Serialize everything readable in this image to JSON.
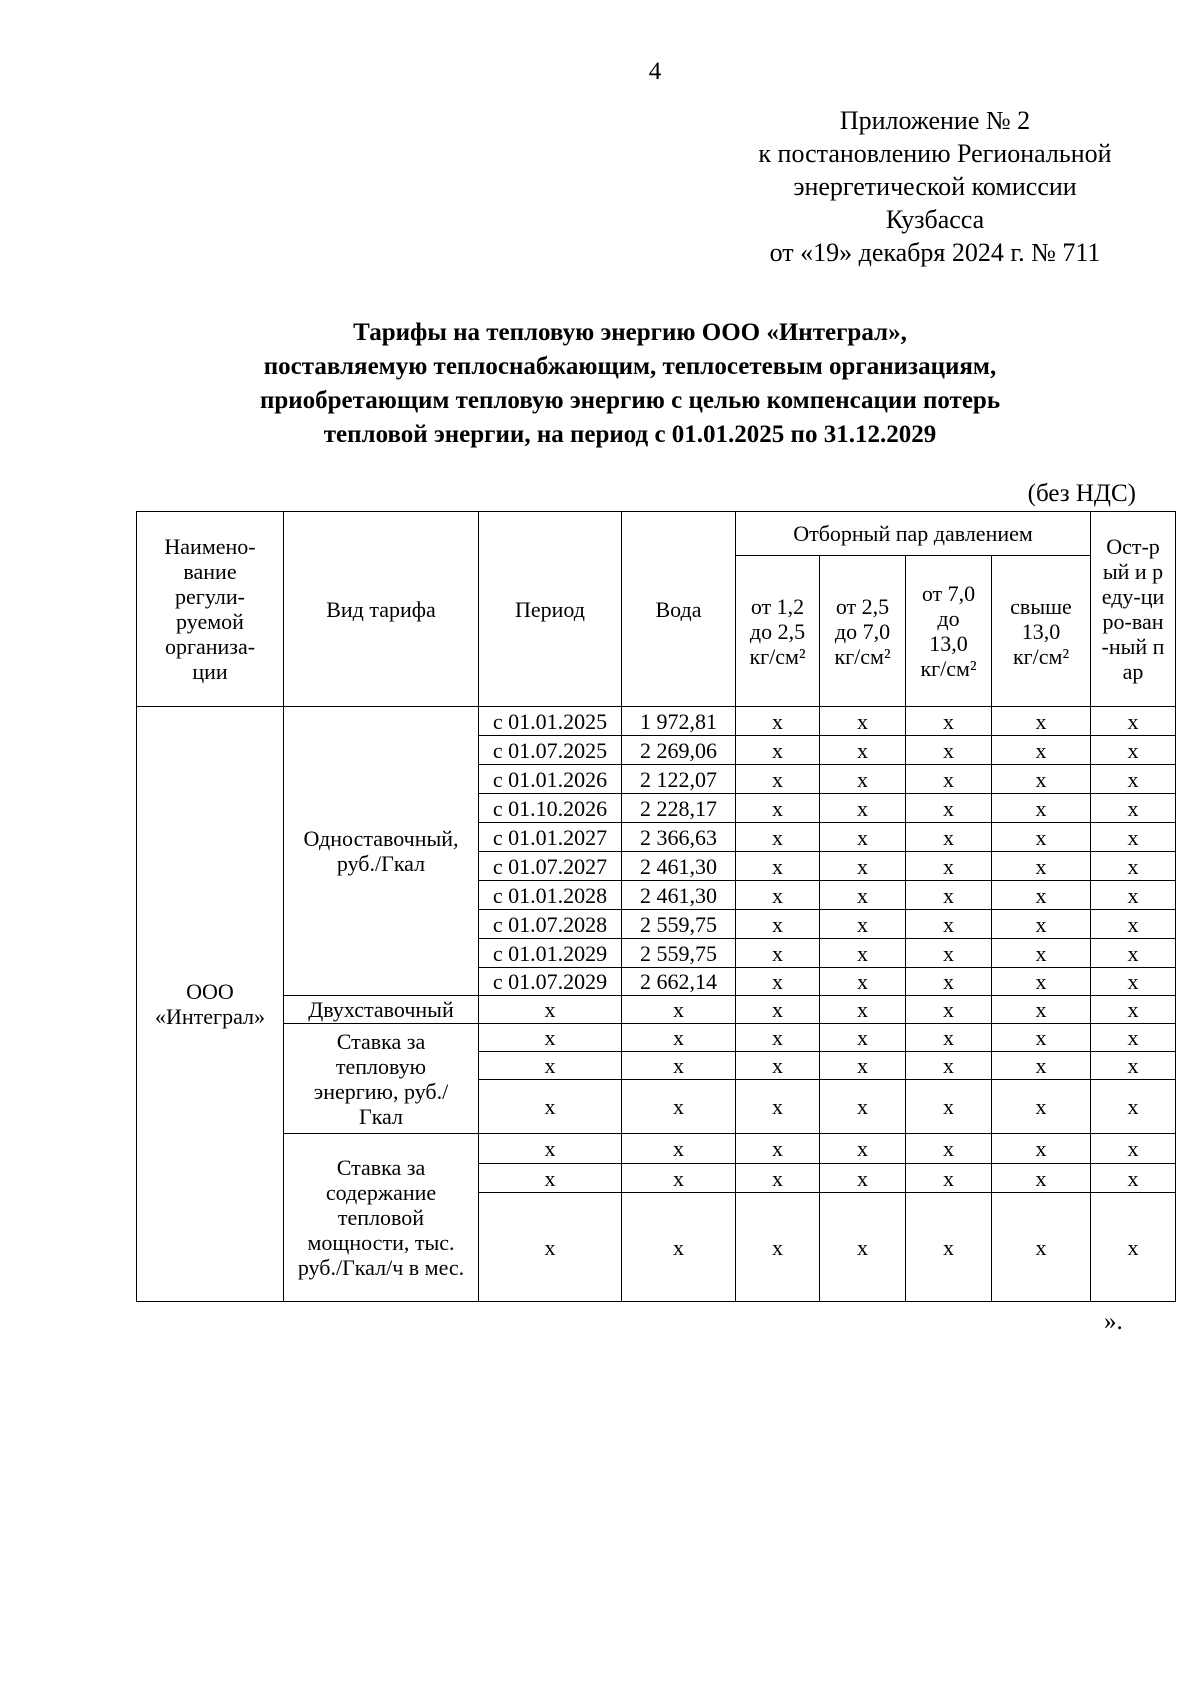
{
  "page_number": "4",
  "appendix": [
    "Приложение № 2",
    "к постановлению Региональной",
    "энергетической комиссии",
    "Кузбасса",
    "от «19» декабря 2024 г. № 711"
  ],
  "title": [
    "Тарифы на тепловую энергию ООО «Интеграл»,",
    "поставляемую теплоснабжающим, теплосетевым организациям,",
    "приобретающим тепловую энергию с целью компенсации потерь",
    "тепловой энергии, на период с 01.01.2025 по 31.12.2029"
  ],
  "vat_note": "(без НДС)",
  "table": {
    "headers": {
      "org": "Наимено-вание регули-руемой организа-ции",
      "tariff_type": "Вид тарифа",
      "period": "Период",
      "water": "Вода",
      "steam_group": "Отборный пар давлением",
      "steam1": "от 1,2 до 2,5 кг/см²",
      "steam2": "от 2,5 до 7,0 кг/см²",
      "steam3": "от 7,0 до 13,0 кг/см²",
      "steam4": "свыше 13,0 кг/см²",
      "sharp": "Ост-рый и реду-циро-ван-ный пар"
    },
    "org": "ООО «Интеграл»",
    "single_rate_label": "Одноставочный, руб./Гкал",
    "single_rate_rows": [
      {
        "period": "с 01.01.2025",
        "water": "1 972,81"
      },
      {
        "period": "с 01.07.2025",
        "water": "2 269,06"
      },
      {
        "period": "с 01.01.2026",
        "water": "2 122,07"
      },
      {
        "period": "с 01.10.2026",
        "water": "2 228,17"
      },
      {
        "period": "с 01.01.2027",
        "water": "2 366,63"
      },
      {
        "period": "с 01.07.2027",
        "water": "2 461,30"
      },
      {
        "period": "с 01.01.2028",
        "water": "2 461,30"
      },
      {
        "period": "с 01.07.2028",
        "water": "2 559,75"
      },
      {
        "period": "с 01.01.2029",
        "water": "2 559,75"
      },
      {
        "period": "с 01.07.2029",
        "water": "2 662,14"
      }
    ],
    "two_rate_label": "Двухставочный",
    "energy_rate_label": "Ставка за тепловую энергию, руб./Гкал",
    "capacity_rate_label": "Ставка за содержание тепловой мощности, тыс. руб./Гкал/ч в мес.",
    "na": "х"
  },
  "closing": "»."
}
